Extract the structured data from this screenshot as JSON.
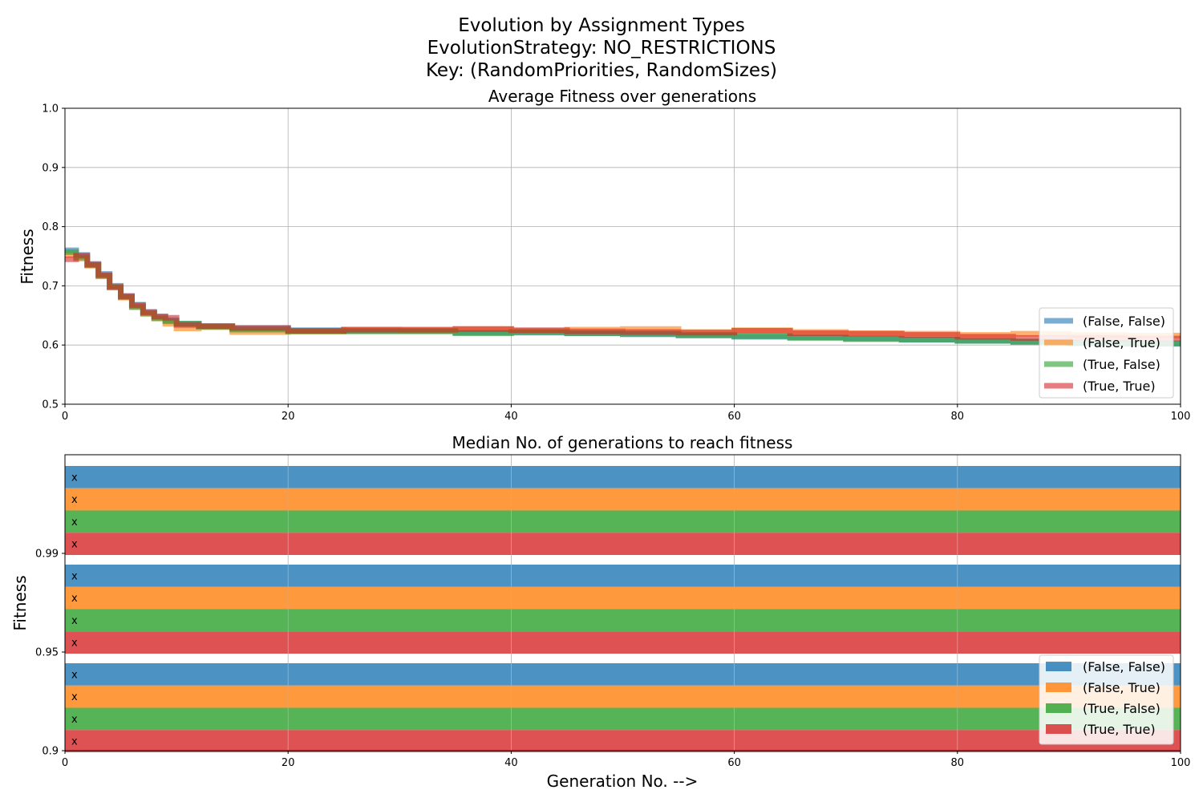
{
  "suptitle": [
    "Evolution by Assignment Types",
    "EvolutionStrategy: NO_RESTRICTIONS",
    "Key: (RandomPriorities, RandomSizes)"
  ],
  "colors": {
    "(False, False)": "#1f77b4",
    "(False, True)": "#ff7f0e",
    "(True, False)": "#2ca02c",
    "(True, True)": "#d62728"
  },
  "chart_data": [
    {
      "type": "line",
      "title": "Average Fitness over generations",
      "xlabel": "",
      "ylabel": "Fitness",
      "xlim": [
        0,
        100
      ],
      "ylim": [
        0.5,
        1.0
      ],
      "xticks": [
        "0",
        "20",
        "40",
        "60",
        "80",
        "100"
      ],
      "yticks": [
        "0.5",
        "0.6",
        "0.7",
        "0.8",
        "0.9",
        "1.0"
      ],
      "grid": true,
      "legend_position": "lower-right",
      "step": true,
      "x": [
        0,
        1,
        2,
        3,
        4,
        5,
        6,
        7,
        8,
        9,
        10,
        12,
        15,
        20,
        25,
        30,
        35,
        40,
        45,
        50,
        55,
        60,
        65,
        70,
        75,
        80,
        85,
        90,
        95,
        100
      ],
      "series": [
        {
          "name": "(False, False)",
          "values": [
            0.76,
            0.752,
            0.737,
            0.72,
            0.7,
            0.683,
            0.668,
            0.656,
            0.648,
            0.642,
            0.636,
            0.632,
            0.628,
            0.625,
            0.624,
            0.624,
            0.621,
            0.621,
            0.62,
            0.618,
            0.616,
            0.614,
            0.613,
            0.611,
            0.609,
            0.607,
            0.605,
            0.603,
            0.602,
            0.602
          ]
        },
        {
          "name": "(False, True)",
          "values": [
            0.752,
            0.746,
            0.734,
            0.716,
            0.697,
            0.68,
            0.665,
            0.653,
            0.645,
            0.636,
            0.628,
            0.63,
            0.622,
            0.623,
            0.626,
            0.625,
            0.627,
            0.624,
            0.626,
            0.627,
            0.622,
            0.625,
            0.622,
            0.62,
            0.619,
            0.617,
            0.619,
            0.617,
            0.616,
            0.616
          ]
        },
        {
          "name": "(True, False)",
          "values": [
            0.757,
            0.748,
            0.735,
            0.717,
            0.698,
            0.681,
            0.664,
            0.653,
            0.645,
            0.64,
            0.636,
            0.631,
            0.626,
            0.623,
            0.623,
            0.623,
            0.62,
            0.622,
            0.62,
            0.619,
            0.617,
            0.615,
            0.612,
            0.61,
            0.609,
            0.607,
            0.606,
            0.604,
            0.603,
            0.603
          ]
        },
        {
          "name": "(True, True)",
          "values": [
            0.745,
            0.751,
            0.736,
            0.718,
            0.698,
            0.682,
            0.667,
            0.655,
            0.648,
            0.646,
            0.634,
            0.632,
            0.629,
            0.624,
            0.626,
            0.626,
            0.627,
            0.625,
            0.623,
            0.622,
            0.621,
            0.624,
            0.62,
            0.619,
            0.617,
            0.614,
            0.612,
            0.612,
            0.611,
            0.611
          ]
        }
      ]
    },
    {
      "type": "bar",
      "orientation": "horizontal",
      "title": "Median No. of generations to reach fitness",
      "xlabel": "Generation No. -->",
      "ylabel": "Fitness",
      "xlim": [
        0,
        100
      ],
      "xticks": [
        "0",
        "20",
        "40",
        "60",
        "80",
        "100"
      ],
      "categories": [
        "0.99",
        "0.95",
        "0.9"
      ],
      "grid": true,
      "legend_position": "lower-right",
      "bar_label": "x",
      "series": [
        {
          "name": "(False, False)",
          "values": [
            100,
            100,
            100
          ]
        },
        {
          "name": "(False, True)",
          "values": [
            100,
            100,
            100
          ]
        },
        {
          "name": "(True, False)",
          "values": [
            100,
            100,
            100
          ]
        },
        {
          "name": "(True, True)",
          "values": [
            100,
            100,
            100
          ]
        }
      ]
    }
  ]
}
